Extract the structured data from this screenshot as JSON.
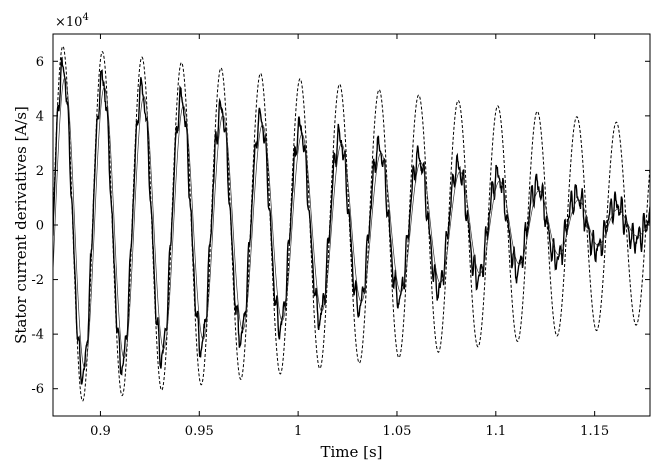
{
  "chart_data": {
    "type": "line",
    "xlabel": "Time [s]",
    "ylabel": "Stator current derivatives [A/s]",
    "y_exponent_label": "×10",
    "y_exponent_power": "4",
    "xlim": [
      0.876,
      1.178
    ],
    "ylim": [
      -70000,
      70000
    ],
    "x_ticks": [
      0.9,
      0.95,
      1.0,
      1.05,
      1.1,
      1.15
    ],
    "x_tick_labels": [
      "0.9",
      "0.95",
      "1",
      "1.05",
      "1.1",
      "1.15"
    ],
    "y_ticks": [
      -60000,
      -40000,
      -20000,
      0,
      20000,
      40000,
      60000
    ],
    "y_tick_labels": [
      "-6",
      "-4",
      "-2",
      "0",
      "2",
      "4",
      "6"
    ],
    "grid": false,
    "legend": "none",
    "series": [
      {
        "style": "dashed",
        "frequency_hz": 50,
        "phase_peak_at": 0.881,
        "amplitude_start": 66000,
        "amplitude_end": 36000,
        "peaks": [
          {
            "x": 0.881,
            "y": 66000
          },
          {
            "x": 0.891,
            "y": -66000
          },
          {
            "x": 0.901,
            "y": 65500
          },
          {
            "x": 0.911,
            "y": -65500
          },
          {
            "x": 0.921,
            "y": 64500
          },
          {
            "x": 0.931,
            "y": -64000
          },
          {
            "x": 0.941,
            "y": 63000
          },
          {
            "x": 0.951,
            "y": -62500
          },
          {
            "x": 0.961,
            "y": 61500
          },
          {
            "x": 0.971,
            "y": -61000
          },
          {
            "x": 0.981,
            "y": 60000
          },
          {
            "x": 0.991,
            "y": -57000
          },
          {
            "x": 1.001,
            "y": 56000
          },
          {
            "x": 1.011,
            "y": -54000
          },
          {
            "x": 1.021,
            "y": 53000
          },
          {
            "x": 1.031,
            "y": -51000
          },
          {
            "x": 1.041,
            "y": 51000
          },
          {
            "x": 1.051,
            "y": -49000
          },
          {
            "x": 1.061,
            "y": 48000
          },
          {
            "x": 1.071,
            "y": -46000
          },
          {
            "x": 1.081,
            "y": 46000
          },
          {
            "x": 1.091,
            "y": -44000
          },
          {
            "x": 1.101,
            "y": 44000
          },
          {
            "x": 1.111,
            "y": -42000
          },
          {
            "x": 1.121,
            "y": 42000
          },
          {
            "x": 1.131,
            "y": -40000
          },
          {
            "x": 1.141,
            "y": 40000
          },
          {
            "x": 1.151,
            "y": -38000
          },
          {
            "x": 1.161,
            "y": 38000
          },
          {
            "x": 1.171,
            "y": -37000
          }
        ]
      },
      {
        "style": "solid-noisy",
        "frequency_hz": 50,
        "phase_peak_at": 0.881,
        "amplitude_start": 58000,
        "amplitude_end": 4500,
        "peaks": [
          {
            "x": 0.881,
            "y": 58000
          },
          {
            "x": 0.891,
            "y": -55000
          },
          {
            "x": 0.901,
            "y": 55000
          },
          {
            "x": 0.911,
            "y": -53000
          },
          {
            "x": 0.921,
            "y": 52000
          },
          {
            "x": 0.931,
            "y": -49000
          },
          {
            "x": 0.941,
            "y": 46000
          },
          {
            "x": 0.951,
            "y": -44000
          },
          {
            "x": 0.961,
            "y": 42000
          },
          {
            "x": 0.971,
            "y": -39000
          },
          {
            "x": 0.981,
            "y": 38000
          },
          {
            "x": 0.991,
            "y": -36000
          },
          {
            "x": 1.001,
            "y": 31000
          },
          {
            "x": 1.011,
            "y": -33000
          },
          {
            "x": 1.021,
            "y": 25000
          },
          {
            "x": 1.031,
            "y": -28000
          },
          {
            "x": 1.041,
            "y": 19000
          },
          {
            "x": 1.051,
            "y": -19000
          },
          {
            "x": 1.061,
            "y": 14000
          },
          {
            "x": 1.071,
            "y": -12000
          },
          {
            "x": 1.081,
            "y": 11000
          },
          {
            "x": 1.091,
            "y": -9000
          },
          {
            "x": 1.101,
            "y": 8000
          },
          {
            "x": 1.111,
            "y": -7000
          },
          {
            "x": 1.121,
            "y": 6000
          },
          {
            "x": 1.131,
            "y": -5500
          },
          {
            "x": 1.141,
            "y": 5500
          },
          {
            "x": 1.151,
            "y": -5000
          },
          {
            "x": 1.161,
            "y": 5000
          },
          {
            "x": 1.171,
            "y": -4500
          }
        ]
      },
      {
        "style": "solid-thin",
        "frequency_hz": 50,
        "phase_peak_at": 0.882,
        "amplitude_start": 55000,
        "amplitude_end": 3000,
        "peaks": [
          {
            "x": 0.882,
            "y": 55000
          },
          {
            "x": 0.892,
            "y": -54000
          },
          {
            "x": 0.902,
            "y": 53000
          },
          {
            "x": 0.912,
            "y": -51000
          },
          {
            "x": 0.922,
            "y": 49000
          },
          {
            "x": 0.932,
            "y": -47000
          },
          {
            "x": 0.942,
            "y": 44000
          },
          {
            "x": 0.952,
            "y": -41000
          },
          {
            "x": 0.962,
            "y": 38000
          },
          {
            "x": 0.972,
            "y": -36000
          },
          {
            "x": 0.982,
            "y": 34000
          },
          {
            "x": 0.992,
            "y": -31000
          },
          {
            "x": 1.002,
            "y": 28000
          },
          {
            "x": 1.012,
            "y": -25000
          },
          {
            "x": 1.022,
            "y": 22000
          },
          {
            "x": 1.032,
            "y": -19000
          },
          {
            "x": 1.042,
            "y": 17000
          },
          {
            "x": 1.052,
            "y": -14000
          },
          {
            "x": 1.062,
            "y": 12000
          },
          {
            "x": 1.072,
            "y": -10000
          },
          {
            "x": 1.082,
            "y": 8500
          },
          {
            "x": 1.092,
            "y": -7000
          },
          {
            "x": 1.102,
            "y": 6000
          },
          {
            "x": 1.112,
            "y": -5000
          },
          {
            "x": 1.122,
            "y": 4500
          },
          {
            "x": 1.132,
            "y": -4000
          },
          {
            "x": 1.142,
            "y": 3500
          },
          {
            "x": 1.152,
            "y": -3500
          },
          {
            "x": 1.162,
            "y": 3000
          },
          {
            "x": 1.172,
            "y": -3000
          }
        ]
      }
    ]
  }
}
